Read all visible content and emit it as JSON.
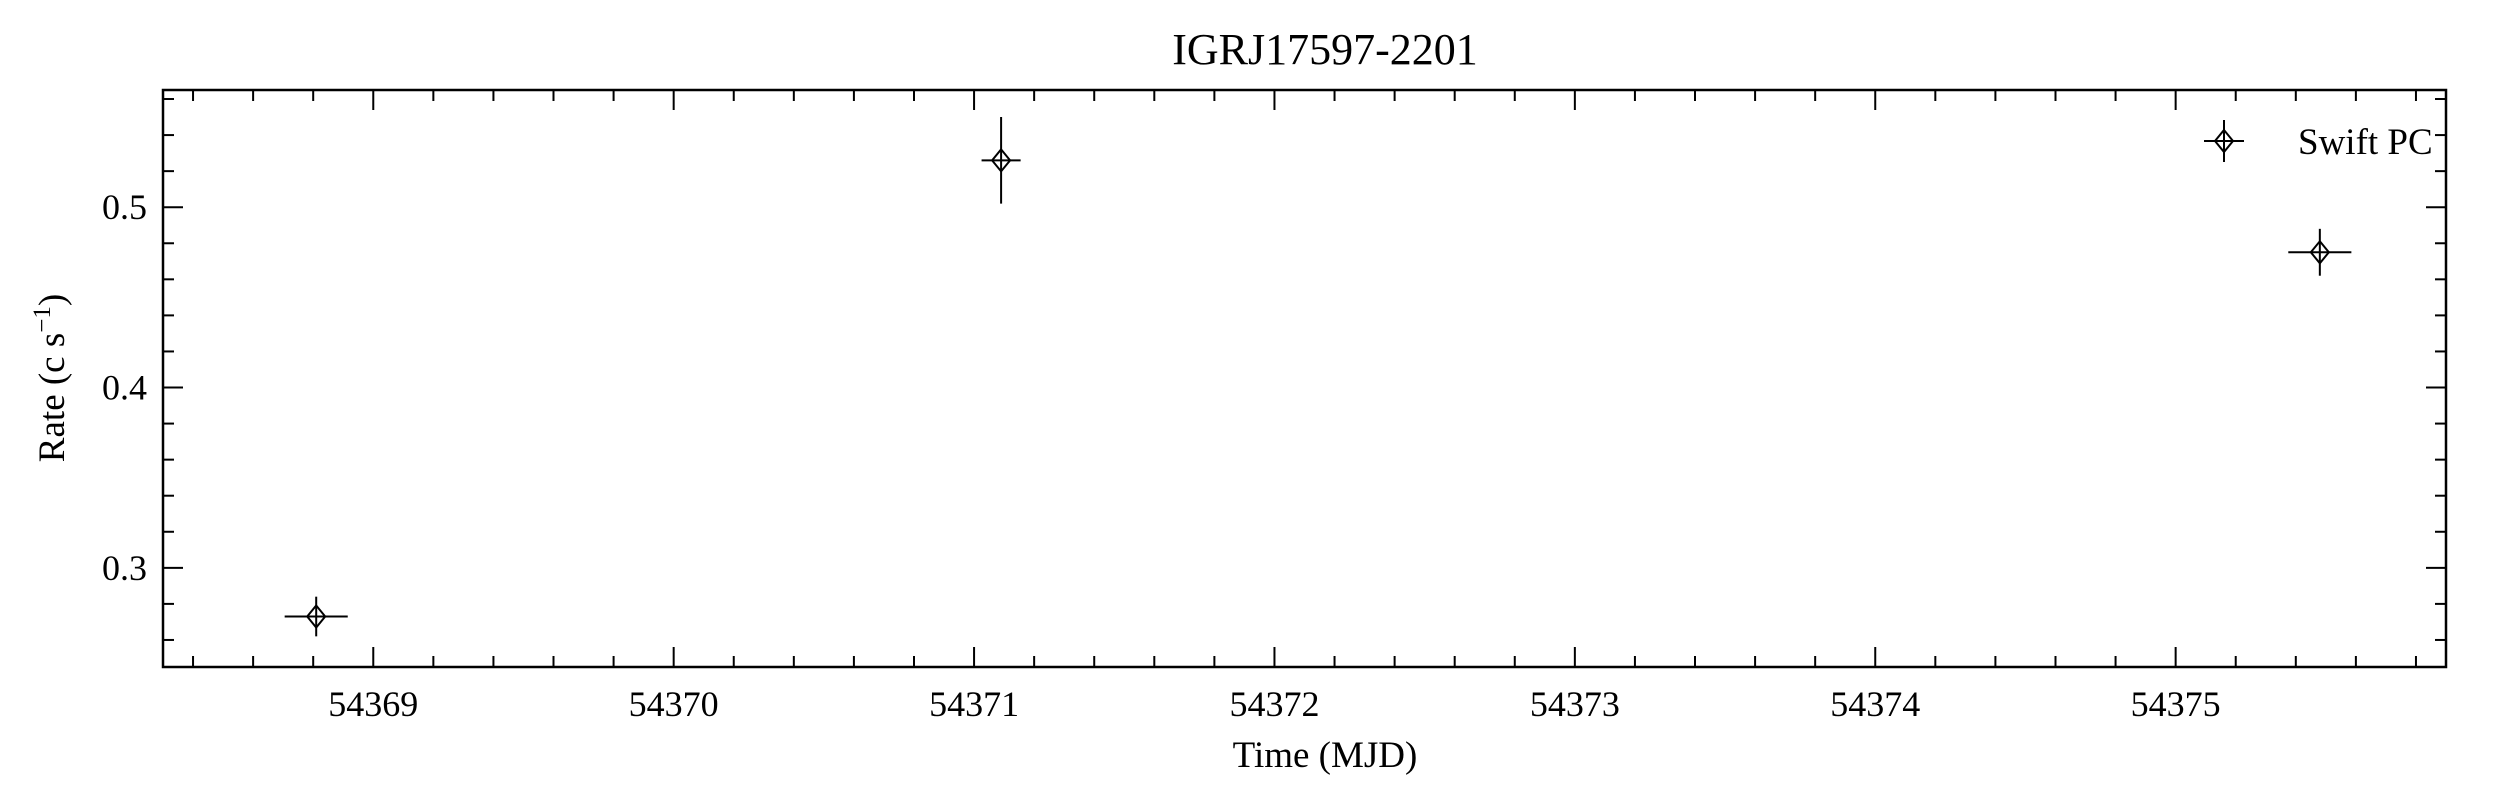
{
  "chart_data": {
    "type": "scatter",
    "title": "IGRJ17597-2201",
    "xlabel": "Time (MJD)",
    "ylabel_prefix": "Rate (c s",
    "ylabel_exp": "−1",
    "ylabel_suffix": ")",
    "xlim": [
      54368.3,
      54375.9
    ],
    "ylim": [
      0.245,
      0.565
    ],
    "xticks": [
      54369,
      54370,
      54371,
      54372,
      54373,
      54374,
      54375
    ],
    "xtick_labels": [
      "54369",
      "54370",
      "54371",
      "54372",
      "54373",
      "54374",
      "54375"
    ],
    "yticks": [
      0.3,
      0.4,
      0.5
    ],
    "ytick_labels": [
      "0.3",
      "0.4",
      "0.5"
    ],
    "x_minor_step": 0.2,
    "y_minor_step": 0.02,
    "legend_position": "top-right",
    "grid": false,
    "series": [
      {
        "name": "Swift PC",
        "marker": "thin-diamond",
        "color": "#000000",
        "points": [
          {
            "x": 54368.81,
            "y": 0.273,
            "xerr": 0.105,
            "yerr": 0.011
          },
          {
            "x": 54371.09,
            "y": 0.526,
            "xerr": 0.065,
            "yerr": 0.024
          },
          {
            "x": 54375.48,
            "y": 0.475,
            "xerr": 0.105,
            "yerr": 0.013
          }
        ]
      }
    ]
  }
}
